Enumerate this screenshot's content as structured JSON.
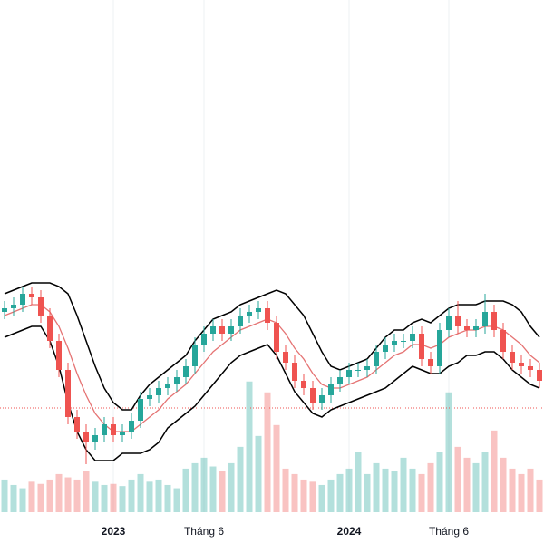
{
  "chart_data": {
    "type": "candlestick",
    "categories": [
      null,
      null,
      null,
      null,
      null,
      null,
      null,
      null,
      null,
      null,
      null,
      null,
      "2023",
      null,
      null,
      null,
      null,
      null,
      null,
      null,
      null,
      null,
      "Tháng 6",
      null,
      null,
      null,
      null,
      null,
      null,
      null,
      null,
      null,
      null,
      null,
      null,
      null,
      null,
      null,
      "2024",
      null,
      null,
      null,
      null,
      null,
      null,
      null,
      null,
      null,
      null,
      "Tháng 6",
      null,
      null,
      null,
      null,
      null,
      null,
      null,
      null,
      null,
      null
    ],
    "open": [
      44,
      45,
      46,
      49,
      48,
      43,
      36,
      28,
      15,
      11,
      8,
      10,
      13,
      10,
      11,
      14,
      20,
      21,
      23,
      24,
      26,
      29,
      35,
      38,
      40,
      38,
      40,
      43,
      44,
      45,
      41,
      33,
      30,
      25,
      23,
      19,
      21,
      24,
      26,
      28,
      28,
      29,
      33,
      35,
      36,
      36,
      38,
      31,
      29,
      39,
      43,
      40,
      39,
      40,
      44,
      39,
      33,
      30,
      29,
      28
    ],
    "high": [
      47,
      48,
      51,
      51,
      50,
      45,
      38,
      30,
      17,
      13,
      12,
      15,
      15,
      13,
      16,
      22,
      23,
      25,
      26,
      28,
      31,
      37,
      40,
      42,
      42,
      42,
      45,
      46,
      47,
      47,
      43,
      35,
      32,
      27,
      25,
      23,
      26,
      28,
      30,
      30,
      31,
      35,
      37,
      38,
      38,
      40,
      40,
      33,
      41,
      45,
      47,
      42,
      42,
      49,
      46,
      41,
      35,
      32,
      31,
      30
    ],
    "low": [
      42,
      43,
      44,
      46,
      41,
      34,
      26,
      13,
      9,
      2,
      6,
      8,
      8,
      8,
      9,
      12,
      18,
      19,
      21,
      22,
      24,
      27,
      33,
      36,
      36,
      36,
      38,
      41,
      42,
      39,
      31,
      28,
      23,
      21,
      17,
      17,
      19,
      22,
      24,
      26,
      26,
      27,
      31,
      33,
      34,
      34,
      29,
      27,
      27,
      37,
      38,
      37,
      37,
      38,
      37,
      31,
      28,
      27,
      26,
      23
    ],
    "close": [
      45,
      46,
      49,
      48,
      43,
      36,
      28,
      15,
      11,
      8,
      10,
      13,
      10,
      11,
      14,
      20,
      21,
      23,
      24,
      26,
      29,
      35,
      38,
      40,
      38,
      40,
      43,
      44,
      45,
      41,
      33,
      30,
      25,
      23,
      19,
      21,
      24,
      26,
      28,
      28,
      29,
      33,
      35,
      36,
      36,
      38,
      31,
      29,
      39,
      43,
      40,
      39,
      40,
      44,
      39,
      33,
      30,
      29,
      28,
      25
    ],
    "upper": [
      49,
      50,
      51,
      52,
      52,
      52,
      51,
      49,
      43,
      36,
      29,
      23,
      19,
      17,
      17,
      21,
      24,
      26,
      28,
      30,
      32,
      36,
      39,
      42,
      43,
      44,
      46,
      47,
      48,
      49,
      50,
      49,
      46,
      43,
      38,
      33,
      29,
      28,
      29,
      30,
      31,
      34,
      37,
      39,
      39,
      41,
      42,
      41,
      43,
      45,
      46,
      46,
      46,
      47,
      47,
      47,
      46,
      44,
      40,
      37
    ],
    "middle": [
      43,
      44,
      45,
      46,
      46,
      44,
      40,
      34,
      27,
      21,
      16,
      13,
      11,
      11,
      11,
      13,
      15,
      17,
      20,
      22,
      24,
      27,
      30,
      33,
      35,
      37,
      39,
      40,
      41,
      42,
      41,
      38,
      34,
      31,
      27,
      24,
      23,
      23,
      24,
      25,
      26,
      28,
      30,
      32,
      33,
      35,
      35,
      34,
      35,
      37,
      38,
      39,
      39,
      40,
      40,
      39,
      37,
      35,
      32,
      30
    ],
    "lower": [
      37,
      38,
      39,
      40,
      40,
      36,
      29,
      19,
      11,
      6,
      3,
      3,
      3,
      5,
      5,
      5,
      6,
      8,
      12,
      14,
      16,
      18,
      21,
      24,
      27,
      30,
      32,
      33,
      34,
      35,
      32,
      27,
      22,
      19,
      16,
      15,
      17,
      18,
      19,
      20,
      21,
      22,
      23,
      25,
      27,
      29,
      28,
      27,
      27,
      29,
      30,
      32,
      32,
      33,
      33,
      31,
      28,
      26,
      24,
      23
    ],
    "volume": [
      30,
      25,
      22,
      28,
      26,
      30,
      35,
      32,
      30,
      38,
      28,
      25,
      26,
      24,
      30,
      35,
      28,
      30,
      25,
      22,
      40,
      45,
      50,
      42,
      38,
      45,
      60,
      120,
      70,
      110,
      80,
      40,
      35,
      30,
      28,
      25,
      30,
      35,
      40,
      55,
      35,
      45,
      40,
      38,
      50,
      40,
      35,
      45,
      55,
      110,
      60,
      50,
      45,
      55,
      75,
      50,
      40,
      35,
      40,
      30
    ],
    "price_line": 17.5,
    "ylim": [
      0,
      130
    ],
    "volume_ylim": [
      0,
      470
    ],
    "up_color": "#26a69a",
    "down_color": "#ef5350",
    "band_color": "#000000",
    "middle_color": "#e57373",
    "grid": true
  }
}
